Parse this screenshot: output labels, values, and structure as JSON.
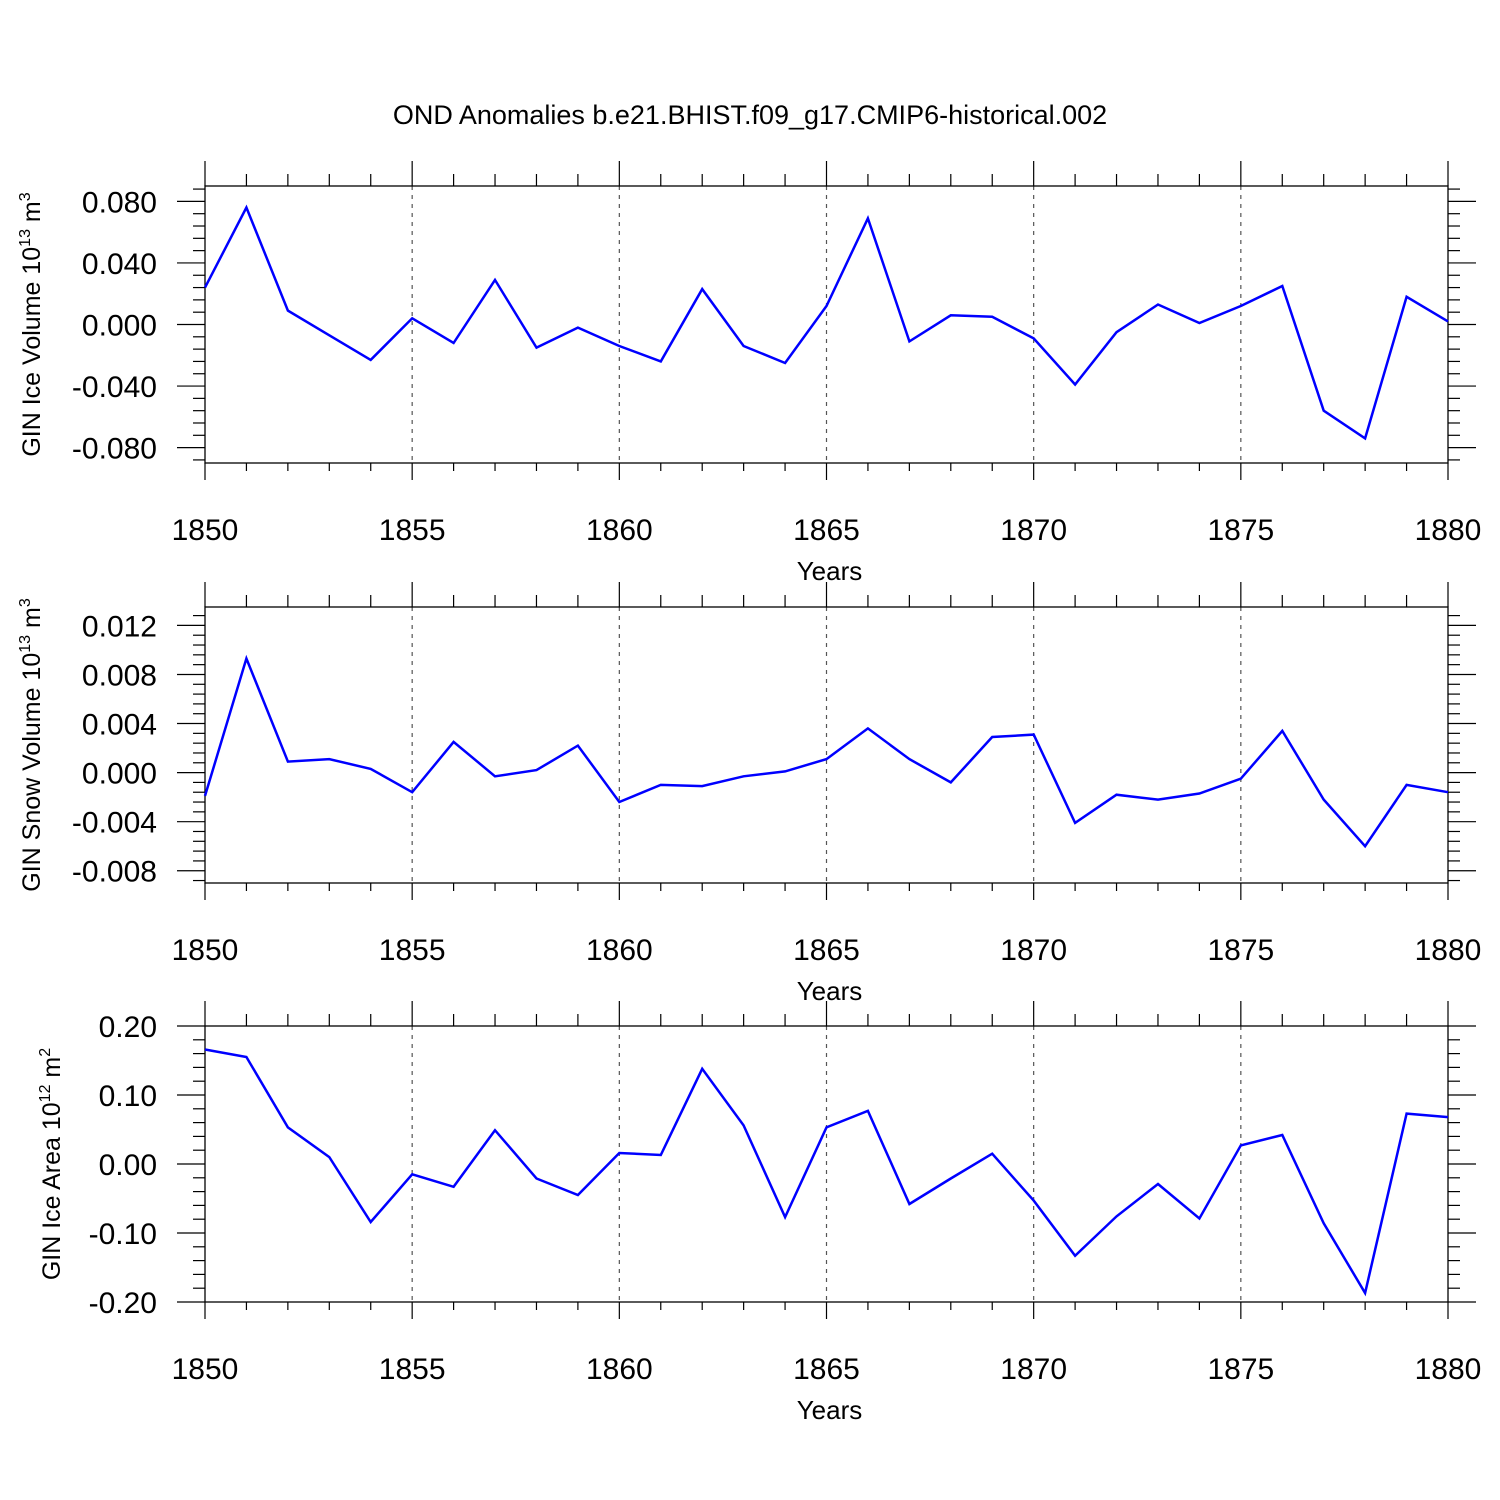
{
  "title": "OND Anomalies b.e21.BHIST.f09_g17.CMIP6-historical.002",
  "chart_data": [
    {
      "type": "line",
      "ylabel": "GIN Ice Volume 10",
      "ylabel_exp": "13",
      "ylabel_unit": " m",
      "ylabel_unit_exp": "3",
      "xlabel": "Years",
      "xlim": [
        1850,
        1880
      ],
      "ylim": [
        -0.09,
        0.09
      ],
      "xticks": [
        1850,
        1855,
        1860,
        1865,
        1870,
        1875,
        1880
      ],
      "yticks": [
        -0.08,
        -0.04,
        0.0,
        0.04,
        0.08
      ],
      "ytick_labels": [
        "-0.080",
        "-0.040",
        "0.000",
        "0.040",
        "0.080"
      ],
      "grid": "vertical dashed at major x ticks",
      "series": [
        {
          "color": "#0000ff",
          "x": [
            1850,
            1851,
            1852,
            1853,
            1854,
            1855,
            1856,
            1857,
            1858,
            1859,
            1860,
            1861,
            1862,
            1863,
            1864,
            1865,
            1866,
            1867,
            1868,
            1869,
            1870,
            1871,
            1872,
            1873,
            1874,
            1875,
            1876,
            1877,
            1878,
            1879,
            1880
          ],
          "values": [
            0.024,
            0.076,
            0.009,
            -0.007,
            -0.023,
            0.004,
            -0.012,
            0.029,
            -0.015,
            -0.002,
            -0.014,
            -0.024,
            0.023,
            -0.014,
            -0.025,
            0.012,
            0.069,
            -0.011,
            0.006,
            0.005,
            -0.009,
            -0.039,
            -0.005,
            0.013,
            0.001,
            0.012,
            0.025,
            -0.056,
            -0.074,
            0.018,
            0.002
          ]
        }
      ]
    },
    {
      "type": "line",
      "ylabel": "GIN Snow Volume 10",
      "ylabel_exp": "13",
      "ylabel_unit": " m",
      "ylabel_unit_exp": "3",
      "xlabel": "Years",
      "xlim": [
        1850,
        1880
      ],
      "ylim": [
        -0.009,
        0.0135
      ],
      "xticks": [
        1850,
        1855,
        1860,
        1865,
        1870,
        1875,
        1880
      ],
      "yticks": [
        -0.008,
        -0.004,
        0.0,
        0.004,
        0.008,
        0.012
      ],
      "ytick_labels": [
        "-0.008",
        "-0.004",
        "0.000",
        "0.004",
        "0.008",
        "0.012"
      ],
      "grid": "vertical dashed at major x ticks",
      "series": [
        {
          "color": "#0000ff",
          "x": [
            1850,
            1851,
            1852,
            1853,
            1854,
            1855,
            1856,
            1857,
            1858,
            1859,
            1860,
            1861,
            1862,
            1863,
            1864,
            1865,
            1866,
            1867,
            1868,
            1869,
            1870,
            1871,
            1872,
            1873,
            1874,
            1875,
            1876,
            1877,
            1878,
            1879,
            1880
          ],
          "values": [
            -0.0019,
            0.0093,
            0.0009,
            0.0011,
            0.0003,
            -0.0016,
            0.0025,
            -0.0003,
            0.0002,
            0.0022,
            -0.0024,
            -0.001,
            -0.0011,
            -0.0003,
            0.0001,
            0.0011,
            0.0036,
            0.0011,
            -0.0008,
            0.0029,
            0.0031,
            -0.0041,
            -0.0018,
            -0.0022,
            -0.0017,
            -0.0005,
            0.0034,
            -0.0022,
            -0.006,
            -0.001,
            -0.0016
          ]
        }
      ]
    },
    {
      "type": "line",
      "ylabel": "GIN Ice Area 10",
      "ylabel_exp": "12",
      "ylabel_unit": " m",
      "ylabel_unit_exp": "2",
      "xlabel": "Years",
      "xlim": [
        1850,
        1880
      ],
      "ylim": [
        -0.2,
        0.2
      ],
      "xticks": [
        1850,
        1855,
        1860,
        1865,
        1870,
        1875,
        1880
      ],
      "yticks": [
        -0.2,
        -0.1,
        0.0,
        0.1,
        0.2
      ],
      "ytick_labels": [
        "-0.20",
        "-0.10",
        "0.00",
        "0.10",
        "0.20"
      ],
      "grid": "vertical dashed at major x ticks",
      "series": [
        {
          "color": "#0000ff",
          "x": [
            1850,
            1851,
            1852,
            1853,
            1854,
            1855,
            1856,
            1857,
            1858,
            1859,
            1860,
            1861,
            1862,
            1863,
            1864,
            1865,
            1866,
            1867,
            1868,
            1869,
            1870,
            1871,
            1872,
            1873,
            1874,
            1875,
            1876,
            1877,
            1878,
            1879,
            1880
          ],
          "values": [
            0.166,
            0.155,
            0.053,
            0.01,
            -0.084,
            -0.015,
            -0.033,
            0.049,
            -0.021,
            -0.045,
            0.016,
            0.013,
            0.138,
            0.056,
            -0.077,
            0.053,
            0.077,
            -0.058,
            -0.021,
            0.015,
            -0.053,
            -0.133,
            -0.076,
            -0.029,
            -0.079,
            0.027,
            0.042,
            -0.086,
            -0.187,
            0.073,
            0.068
          ]
        }
      ]
    }
  ]
}
